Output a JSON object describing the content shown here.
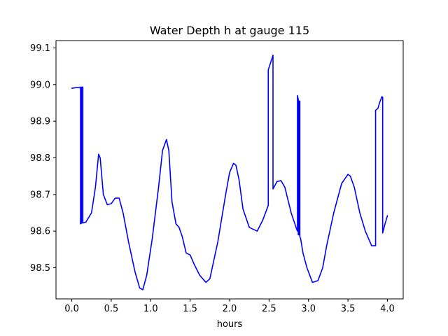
{
  "chart_data": {
    "type": "line",
    "title": "Water Depth h at gauge 115",
    "xlabel": "hours",
    "ylabel": "",
    "xlim": [
      -0.2,
      4.2
    ],
    "ylim": [
      98.415,
      99.12
    ],
    "xticks": [
      0.0,
      0.5,
      1.0,
      1.5,
      2.0,
      2.5,
      3.0,
      3.5,
      4.0
    ],
    "xtick_labels": [
      "0.0",
      "0.5",
      "1.0",
      "1.5",
      "2.0",
      "2.5",
      "3.0",
      "3.5",
      "4.0"
    ],
    "yticks": [
      98.5,
      98.6,
      98.7,
      98.8,
      98.9,
      99.0,
      99.1
    ],
    "ytick_labels": [
      "98.5",
      "98.6",
      "98.7",
      "98.8",
      "98.9",
      "99.0",
      "99.1"
    ],
    "grid": false,
    "series": [
      {
        "color": "#0000ff",
        "x": [
          0.0,
          0.11,
          0.11,
          0.125,
          0.125,
          0.14,
          0.14,
          0.18,
          0.25,
          0.3,
          0.34,
          0.36,
          0.4,
          0.45,
          0.5,
          0.55,
          0.6,
          0.65,
          0.72,
          0.8,
          0.86,
          0.9,
          0.95,
          1.02,
          1.1,
          1.15,
          1.2,
          1.23,
          1.27,
          1.32,
          1.36,
          1.4,
          1.45,
          1.5,
          1.55,
          1.62,
          1.7,
          1.75,
          1.85,
          1.95,
          2.0,
          2.05,
          2.08,
          2.12,
          2.17,
          2.25,
          2.35,
          2.42,
          2.49,
          2.49,
          2.55,
          2.55,
          2.6,
          2.65,
          2.7,
          2.78,
          2.85,
          2.86,
          2.86,
          2.87,
          2.87,
          2.88,
          2.88,
          2.89,
          2.89,
          2.9,
          2.93,
          2.98,
          3.05,
          3.12,
          3.18,
          3.23,
          3.32,
          3.42,
          3.5,
          3.53,
          3.58,
          3.65,
          3.72,
          3.8,
          3.84,
          3.85,
          3.85,
          3.88,
          3.9,
          3.93,
          3.94,
          3.94,
          3.97,
          4.0
        ],
        "y": [
          98.99,
          98.993,
          98.62,
          98.622,
          98.993,
          98.993,
          98.622,
          98.625,
          98.65,
          98.72,
          98.81,
          98.8,
          98.7,
          98.672,
          98.675,
          98.69,
          98.69,
          98.65,
          98.57,
          98.49,
          98.445,
          98.44,
          98.48,
          98.58,
          98.72,
          98.82,
          98.85,
          98.82,
          98.68,
          98.62,
          98.61,
          98.585,
          98.54,
          98.535,
          98.51,
          98.48,
          98.46,
          98.47,
          98.57,
          98.7,
          98.76,
          98.785,
          98.78,
          98.74,
          98.66,
          98.61,
          98.6,
          98.63,
          98.67,
          99.04,
          99.08,
          98.715,
          98.735,
          98.738,
          98.72,
          98.65,
          98.605,
          98.6,
          98.97,
          98.96,
          98.59,
          98.59,
          98.955,
          98.955,
          98.585,
          98.58,
          98.54,
          98.5,
          98.46,
          98.465,
          98.5,
          98.56,
          98.65,
          98.73,
          98.755,
          98.75,
          98.72,
          98.65,
          98.6,
          98.56,
          98.56,
          98.56,
          98.93,
          98.935,
          98.95,
          98.967,
          98.965,
          98.595,
          98.62,
          98.642
        ]
      }
    ]
  }
}
